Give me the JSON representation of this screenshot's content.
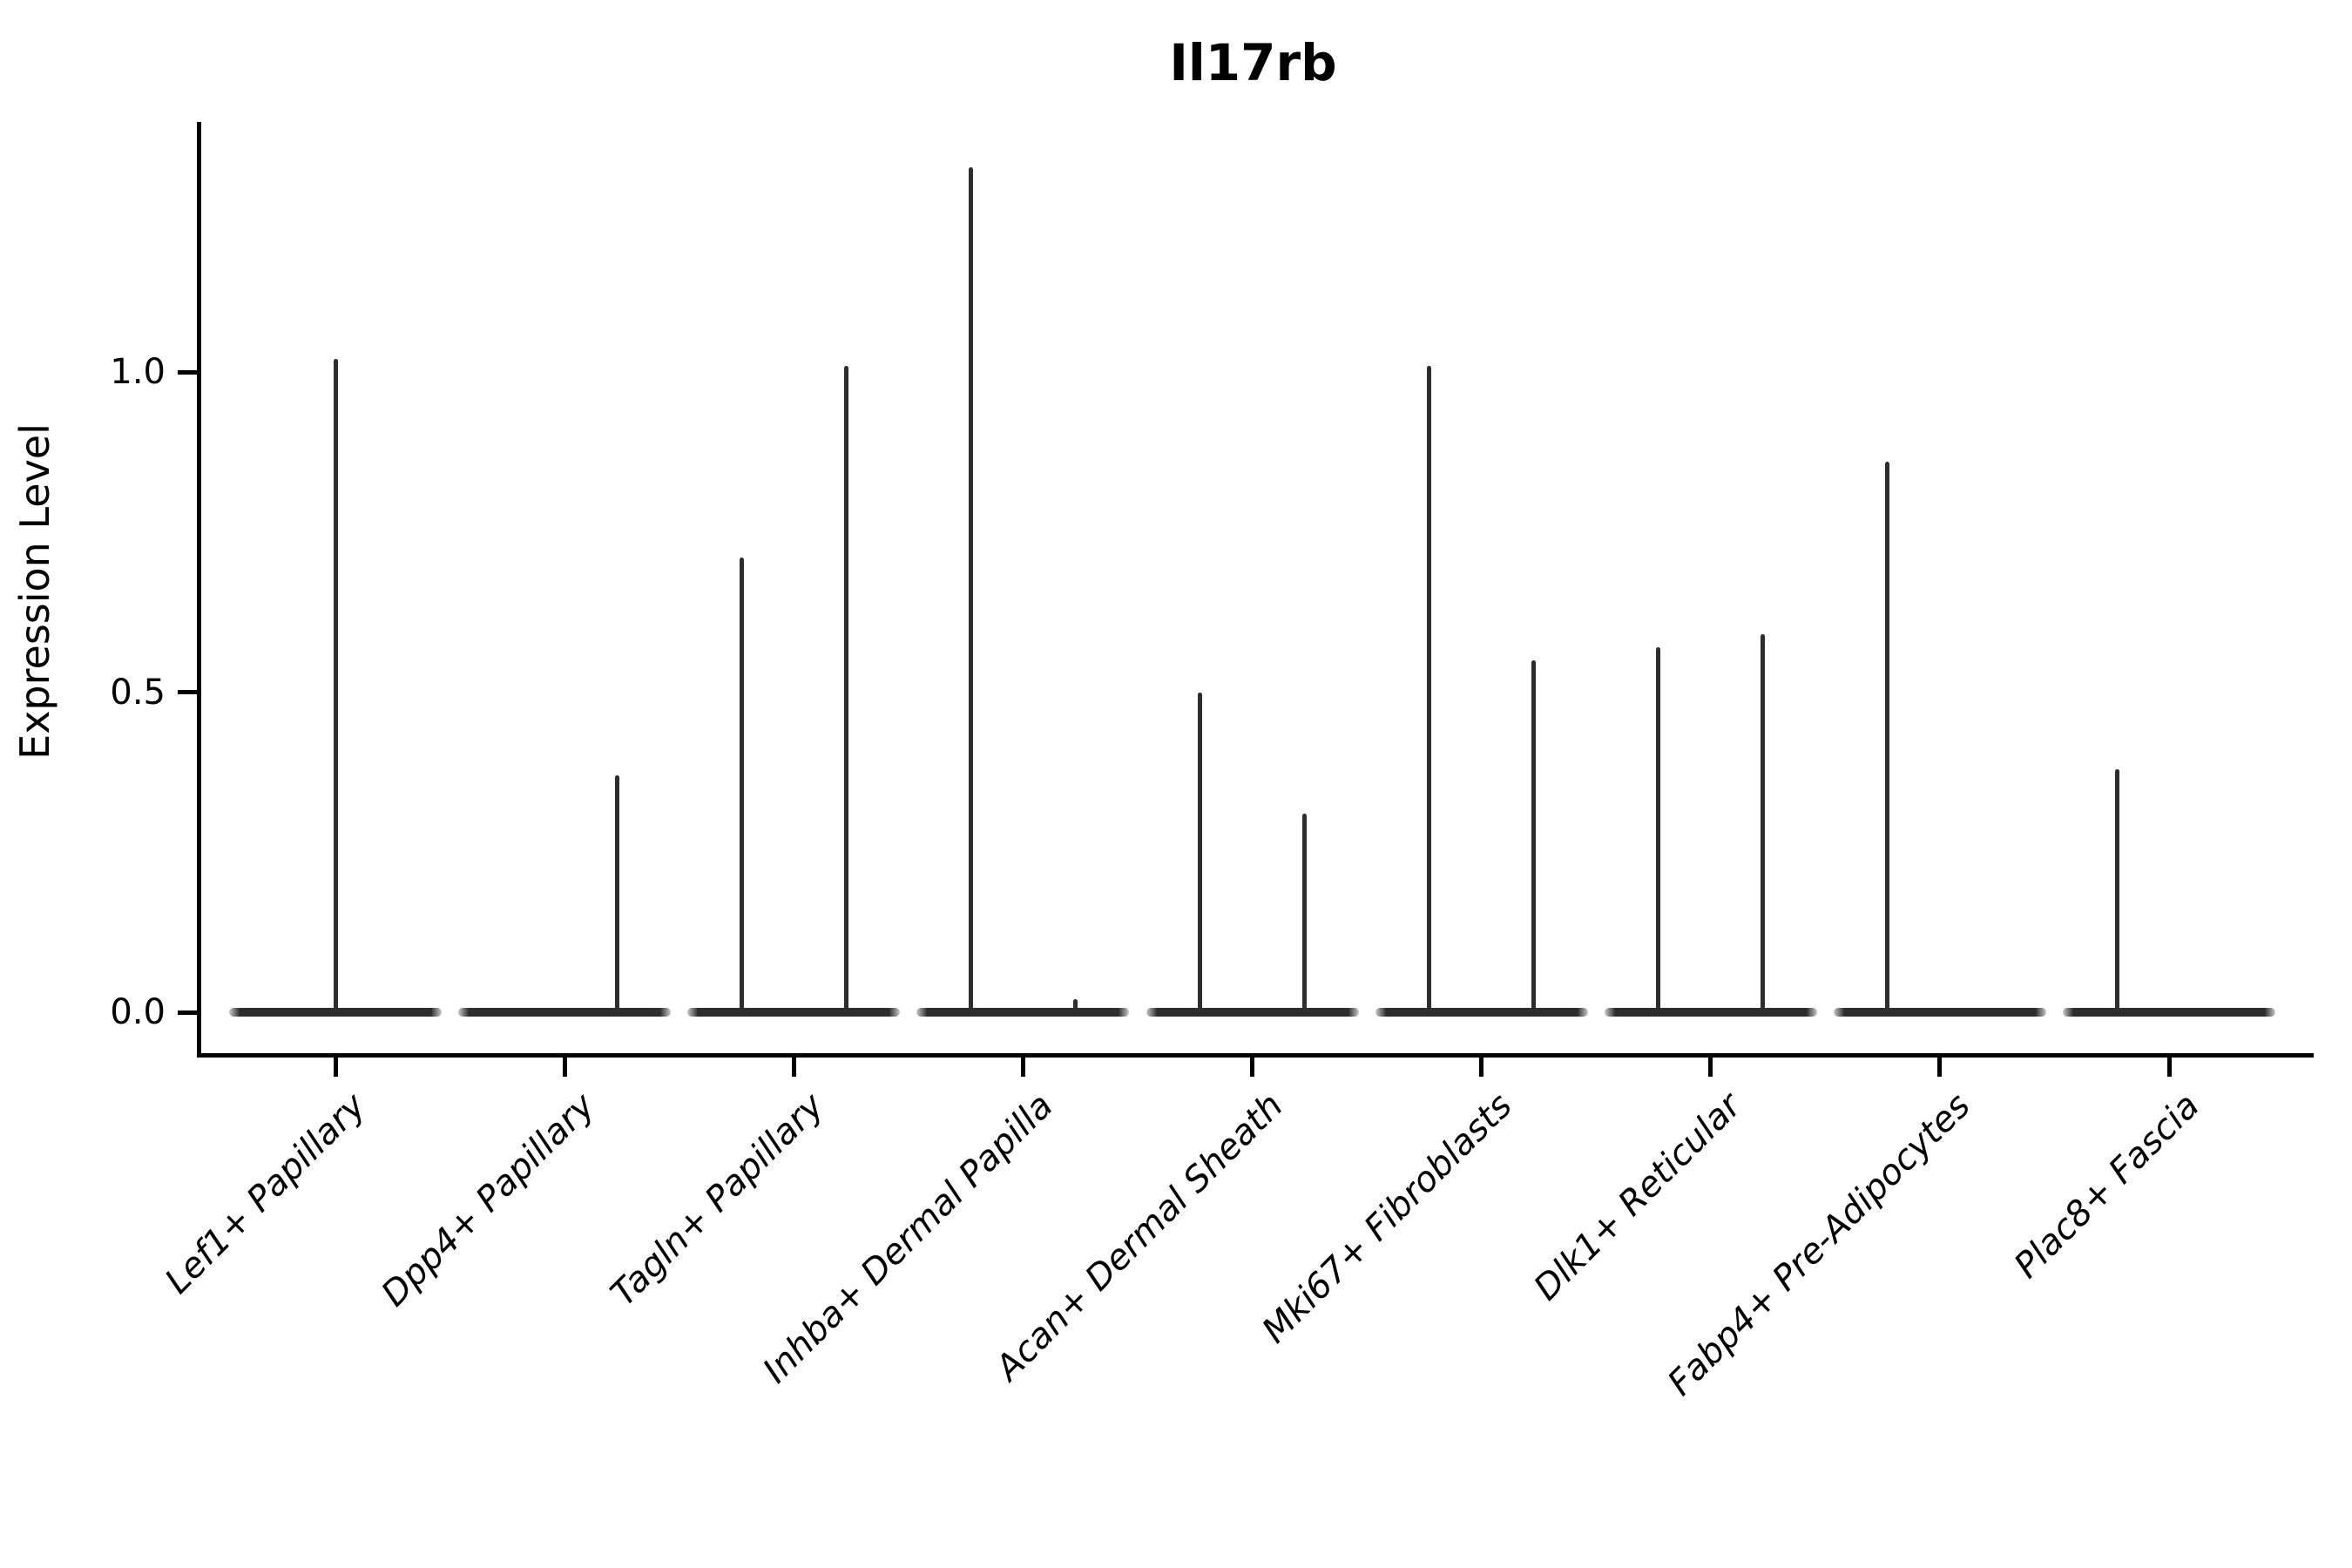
{
  "title": "Il17rb",
  "chart_data": {
    "type": "violin",
    "title": "Il17rb",
    "xlabel": "",
    "ylabel": "Expression Level",
    "ylim": [
      -0.06,
      1.39
    ],
    "grid": false,
    "legend": "none",
    "yticks": [
      {
        "label": "0.0",
        "value": 0.0
      },
      {
        "label": "0.5",
        "value": 0.5
      },
      {
        "label": "1.0",
        "value": 1.0
      }
    ],
    "categories": [
      "Lef1+ Papillary",
      "Dpp4+ Papillary",
      "Tagln+ Papillary",
      "Inhba+ Dermal Papilla",
      "Acan+ Dermal Sheath",
      "Mki67+ Fibroblasts",
      "Dlk1+ Reticular",
      "Fabp4+ Pre-Adipocytes",
      "Plac8+ Fascia"
    ],
    "violins": [
      {
        "category": "Lef1+ Papillary",
        "baseline": 0.0,
        "spikes": [
          {
            "side": "center",
            "max": 1.02
          }
        ]
      },
      {
        "category": "Dpp4+ Papillary",
        "baseline": 0.0,
        "spikes": [
          {
            "side": "right",
            "max": 0.37
          }
        ]
      },
      {
        "category": "Tagln+ Papillary",
        "baseline": 0.0,
        "spikes": [
          {
            "side": "left",
            "max": 0.71
          },
          {
            "side": "right",
            "max": 1.01
          }
        ]
      },
      {
        "category": "Inhba+ Dermal Papilla",
        "baseline": 0.0,
        "spikes": [
          {
            "side": "left",
            "max": 1.32
          },
          {
            "side": "right",
            "max": 0.02
          }
        ]
      },
      {
        "category": "Acan+ Dermal Sheath",
        "baseline": 0.0,
        "spikes": [
          {
            "side": "left",
            "max": 0.5
          },
          {
            "side": "right",
            "max": 0.31
          }
        ]
      },
      {
        "category": "Mki67+ Fibroblasts",
        "baseline": 0.0,
        "spikes": [
          {
            "side": "left",
            "max": 1.01
          },
          {
            "side": "right",
            "max": 0.55
          }
        ]
      },
      {
        "category": "Dlk1+ Reticular",
        "baseline": 0.0,
        "spikes": [
          {
            "side": "left",
            "max": 0.57
          },
          {
            "side": "right",
            "max": 0.59
          }
        ]
      },
      {
        "category": "Fabp4+ Pre-Adipocytes",
        "baseline": 0.0,
        "spikes": [
          {
            "side": "left",
            "max": 0.86
          }
        ]
      },
      {
        "category": "Plac8+ Fascia",
        "baseline": 0.0,
        "spikes": [
          {
            "side": "left",
            "max": 0.38
          }
        ]
      }
    ],
    "violin_color": "#2d2d2d",
    "axis_color": "#000000",
    "background_color": "#ffffff"
  }
}
